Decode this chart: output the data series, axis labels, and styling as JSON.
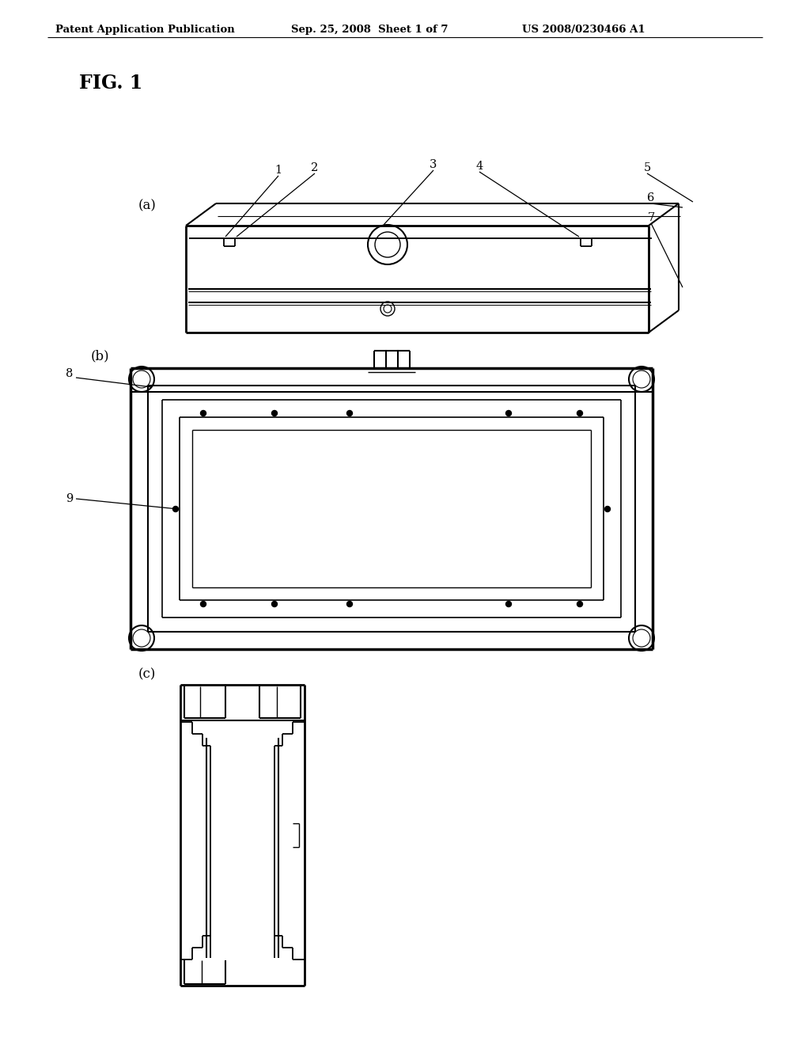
{
  "bg_color": "#ffffff",
  "header_text_left": "Patent Application Publication",
  "header_text_mid": "Sep. 25, 2008  Sheet 1 of 7",
  "header_text_right": "US 2008/0230466 A1",
  "fig_label": "FIG. 1",
  "sub_a": "(a)",
  "sub_b": "(b)",
  "sub_c": "(c)",
  "line_color": "#000000",
  "lw": 1.5
}
